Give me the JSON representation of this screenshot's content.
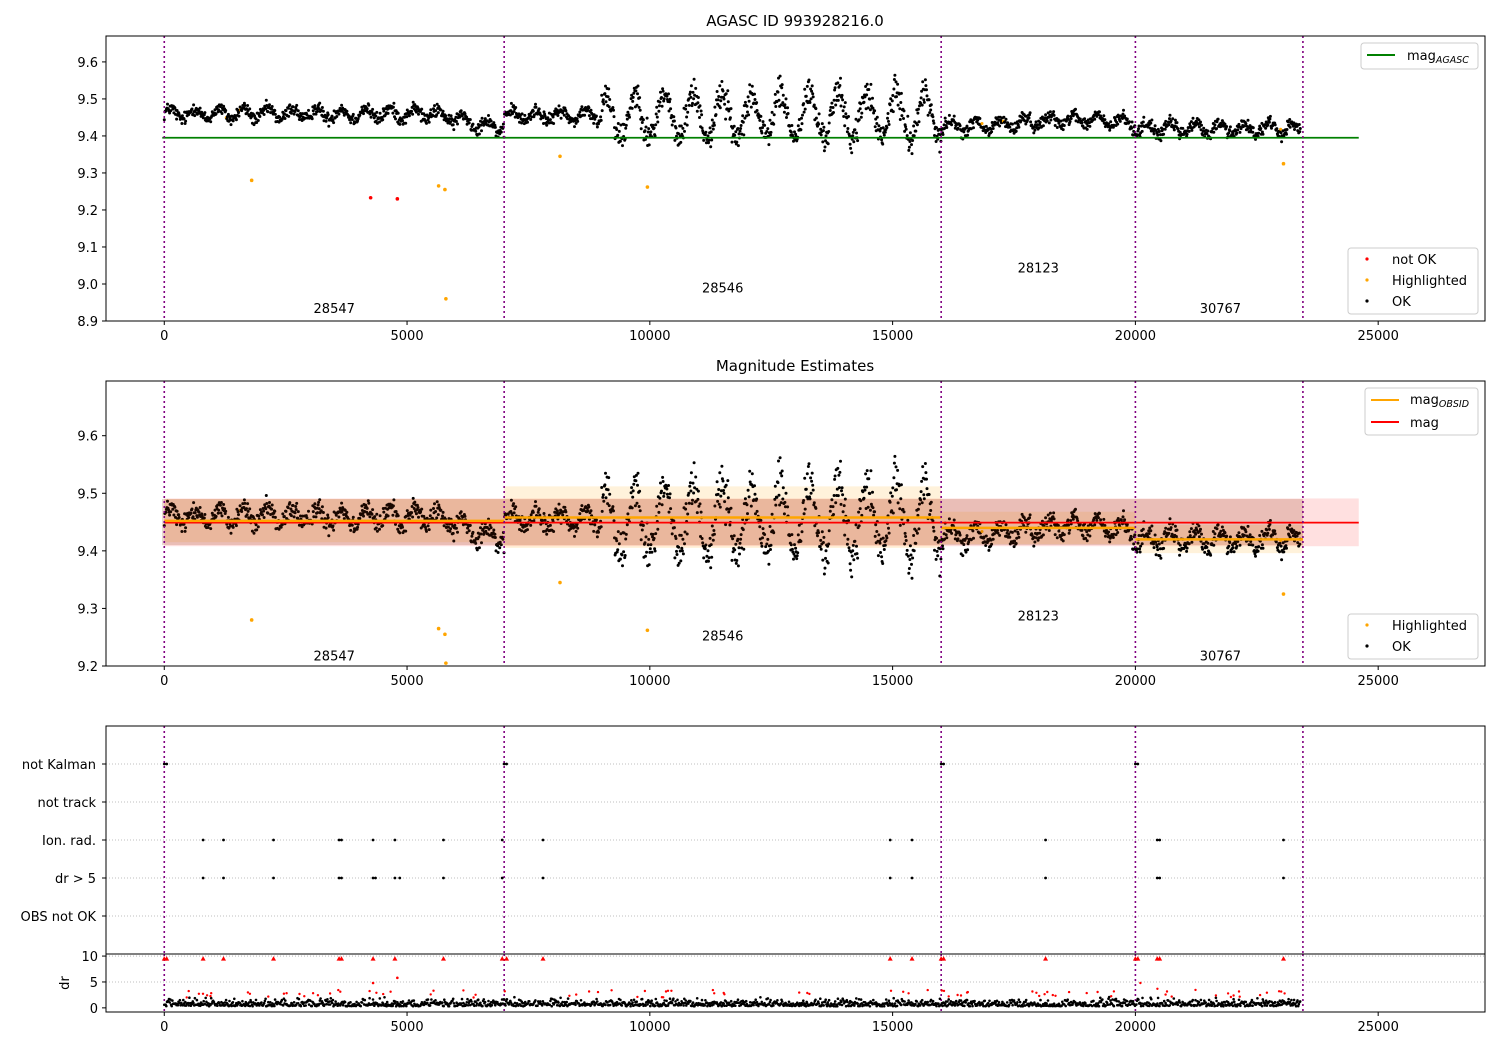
{
  "chart_data": [
    {
      "type": "scatter",
      "title": "AGASC ID 993928216.0",
      "xlim": [
        -1200,
        27200
      ],
      "ylim": [
        8.9,
        9.67
      ],
      "xticks": [
        0,
        5000,
        10000,
        15000,
        20000,
        25000
      ],
      "yticks": [
        8.9,
        9.0,
        9.1,
        9.2,
        9.3,
        9.4,
        9.5,
        9.6
      ],
      "xticklabels": [
        "0",
        "5000",
        "10000",
        "15000",
        "20000",
        "25000"
      ],
      "yticklabels": [
        "8.9",
        "9.0",
        "9.1",
        "9.2",
        "9.3",
        "9.4",
        "9.5",
        "9.6"
      ],
      "obs_boundaries": [
        0,
        7000,
        16000,
        20000,
        23450
      ],
      "obs_labels": [
        {
          "text": "28547",
          "x": 3500,
          "y": 8.935
        },
        {
          "text": "28546",
          "x": 11500,
          "y": 8.99
        },
        {
          "text": "28123",
          "x": 18000,
          "y": 9.045
        },
        {
          "text": "30767",
          "x": 21750,
          "y": 8.935
        }
      ],
      "mag_agasc": 9.395,
      "mag_agasc_xrange": [
        0,
        24600
      ],
      "legend_upper": [
        {
          "label": "mag",
          "sub": "AGASC",
          "color": "#008000"
        }
      ],
      "legend_lower": [
        {
          "label": "not OK",
          "color": "#ff0000"
        },
        {
          "label": "Highlighted",
          "color": "#ffa500"
        },
        {
          "label": "OK",
          "color": "#000000"
        }
      ],
      "highlighted_points": [
        [
          1800,
          9.28
        ],
        [
          5650,
          9.265
        ],
        [
          5780,
          9.255
        ],
        [
          5800,
          8.96
        ],
        [
          9950,
          9.262
        ],
        [
          23050,
          9.325
        ],
        [
          8150,
          9.345
        ]
      ],
      "not_ok_points": [
        [
          4250,
          9.233
        ],
        [
          4800,
          9.23
        ]
      ]
    },
    {
      "type": "scatter",
      "title": "Magnitude Estimates",
      "xlim": [
        -1200,
        27200
      ],
      "ylim": [
        9.2,
        9.695
      ],
      "xticks": [
        0,
        5000,
        10000,
        15000,
        20000,
        25000
      ],
      "yticks": [
        9.2,
        9.3,
        9.4,
        9.5,
        9.6
      ],
      "xticklabels": [
        "0",
        "5000",
        "10000",
        "15000",
        "20000",
        "25000"
      ],
      "yticklabels": [
        "9.2",
        "9.3",
        "9.4",
        "9.5",
        "9.6"
      ],
      "obs_boundaries": [
        0,
        7000,
        16000,
        20000,
        23450
      ],
      "obs_labels": [
        {
          "text": "28547",
          "x": 3500,
          "y": 9.218
        },
        {
          "text": "28546",
          "x": 11500,
          "y": 9.253
        },
        {
          "text": "28123",
          "x": 18000,
          "y": 9.288
        },
        {
          "text": "30767",
          "x": 21750,
          "y": 9.218
        }
      ],
      "mag": 9.449,
      "mag_band": [
        9.408,
        9.491
      ],
      "mag_xrange": [
        0,
        24600
      ],
      "mag_obsid": [
        {
          "x0": 0,
          "x1": 7000,
          "y": 9.452,
          "lo": 9.415,
          "hi": 9.49
        },
        {
          "x0": 7000,
          "x1": 16000,
          "y": 9.458,
          "lo": 9.405,
          "hi": 9.512
        },
        {
          "x0": 16000,
          "x1": 20000,
          "y": 9.44,
          "lo": 9.412,
          "hi": 9.468
        },
        {
          "x0": 20000,
          "x1": 23450,
          "y": 9.42,
          "lo": 9.396,
          "hi": 9.445
        }
      ],
      "legend_upper": [
        {
          "label": "mag",
          "sub": "OBSID",
          "color": "#ffa500"
        },
        {
          "label": "mag",
          "sub": "",
          "color": "#ff0000"
        }
      ],
      "legend_lower": [
        {
          "label": "Highlighted",
          "color": "#ffa500"
        },
        {
          "label": "OK",
          "color": "#000000"
        }
      ],
      "highlighted_points": [
        [
          1800,
          9.28
        ],
        [
          5650,
          9.265
        ],
        [
          5780,
          9.255
        ],
        [
          5800,
          9.205
        ],
        [
          9950,
          9.262
        ],
        [
          23050,
          9.325
        ],
        [
          8150,
          9.345
        ]
      ]
    },
    {
      "type": "scatter",
      "xlim": [
        -1200,
        27200
      ],
      "categories": [
        "not Kalman",
        "not track",
        "Ion. rad.",
        "dr > 5",
        "OBS not OK"
      ],
      "flag_points": {
        "not Kalman": [
          0,
          50,
          7000,
          7050,
          16000,
          16050,
          20000,
          20050
        ],
        "not track": [],
        "Ion. rad.": [
          800,
          1220,
          2250,
          3600,
          3650,
          4300,
          4750,
          5750,
          6960,
          7800,
          14950,
          15400,
          18150,
          20450,
          20500,
          23050
        ],
        "dr > 5": [
          800,
          1220,
          2250,
          3600,
          3650,
          4300,
          4350,
          4750,
          4850,
          5750,
          6960,
          7800,
          14950,
          15400,
          18150,
          20450,
          20500,
          23050
        ],
        "OBS not OK": []
      }
    },
    {
      "type": "scatter",
      "ylabel": "dr",
      "xlim": [
        -1200,
        27200
      ],
      "ylim": [
        -0.8,
        10.4
      ],
      "xticks": [
        0,
        5000,
        10000,
        15000,
        20000,
        25000
      ],
      "yticks": [
        0,
        5,
        10
      ],
      "xticklabels": [
        "0",
        "5000",
        "10000",
        "15000",
        "20000",
        "25000"
      ],
      "yticklabels": [
        "0",
        "5",
        "10"
      ],
      "clipped_points_at_10": [
        0,
        50,
        800,
        1220,
        2250,
        3600,
        3650,
        4300,
        4750,
        5750,
        6960,
        7050,
        7800,
        14950,
        15400,
        16000,
        16050,
        18150,
        20000,
        20050,
        20450,
        20500,
        23050
      ],
      "outlier_points": [
        [
          4300,
          4.8
        ],
        [
          4800,
          5.8
        ]
      ]
    }
  ]
}
